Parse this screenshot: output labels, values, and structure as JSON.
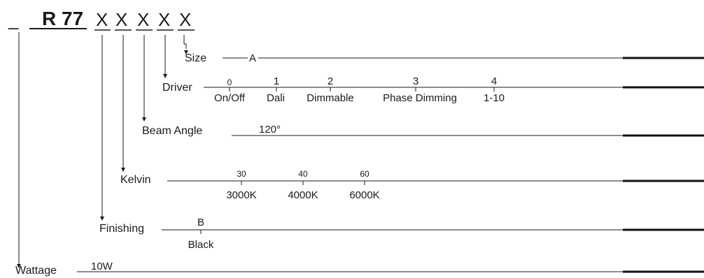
{
  "header": {
    "blank": "_",
    "code": "R 77",
    "placeholders": [
      "X",
      "X",
      "X",
      "X",
      "X"
    ]
  },
  "rows": [
    {
      "label": "Size",
      "options": [
        {
          "code": "A",
          "name": ""
        }
      ]
    },
    {
      "label": "Driver",
      "options": [
        {
          "code": "0",
          "name": "On/Off"
        },
        {
          "code": "1",
          "name": "Dali"
        },
        {
          "code": "2",
          "name": "Dimmable"
        },
        {
          "code": "3",
          "name": "Phase Dimming"
        },
        {
          "code": "4",
          "name": "1-10"
        }
      ]
    },
    {
      "label": "Beam Angle",
      "options": [
        {
          "code": "120°",
          "name": ""
        }
      ]
    },
    {
      "label": "Kelvin",
      "options": [
        {
          "code": "30",
          "name": "3000K"
        },
        {
          "code": "40",
          "name": "4000K"
        },
        {
          "code": "60",
          "name": "6000K"
        }
      ]
    },
    {
      "label": "Finishing",
      "options": [
        {
          "code": "B",
          "name": "Black"
        }
      ]
    },
    {
      "label": "Wattage",
      "options": [
        {
          "code": "10W",
          "name": ""
        }
      ]
    }
  ]
}
